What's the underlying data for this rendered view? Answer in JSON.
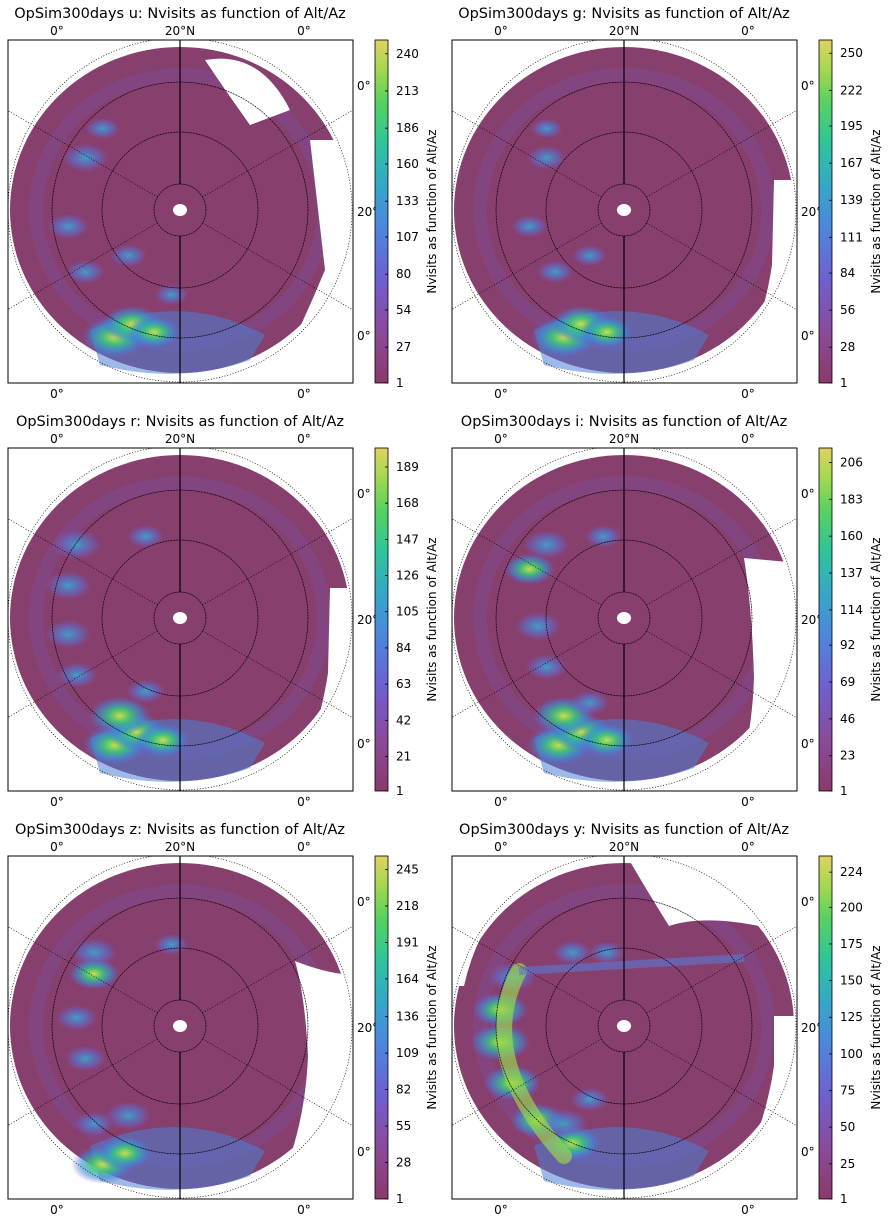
{
  "figure": {
    "panels": [
      {
        "title": "OpSim300days u: Nvisits as function of Alt/Az",
        "colorbar": {
          "label": "Nvisits as function of Alt/Az",
          "ticks": [
            "1",
            "27",
            "54",
            "80",
            "107",
            "133",
            "160",
            "186",
            "213",
            "240"
          ],
          "max": 250
        },
        "labels": {
          "top_left": "0°",
          "top_center": "20°N",
          "top_right": "0°",
          "right_upper": "0°",
          "right_middle": "20°",
          "right_lower": "0°",
          "bottom_left": "0°",
          "bottom_right": "0°"
        },
        "gaps": "north-east",
        "hot": [
          [
            -0.38,
            -0.78,
            1.0
          ],
          [
            -0.28,
            -0.7,
            0.85
          ],
          [
            -0.15,
            -0.75,
            0.7
          ],
          [
            -0.55,
            0.32,
            0.55
          ],
          [
            -0.65,
            -0.1,
            0.45
          ],
          [
            -0.55,
            -0.38,
            0.4
          ],
          [
            -0.3,
            -0.28,
            0.35
          ],
          [
            -0.45,
            0.5,
            0.3
          ],
          [
            -0.05,
            -0.52,
            0.3
          ]
        ]
      },
      {
        "title": "OpSim300days g: Nvisits as function of Alt/Az",
        "colorbar": {
          "label": "Nvisits as function of Alt/Az",
          "ticks": [
            "1",
            "28",
            "56",
            "84",
            "111",
            "139",
            "167",
            "195",
            "222",
            "250"
          ],
          "max": 260
        },
        "labels": {
          "top_left": "0°",
          "top_center": "20°N",
          "top_right": "0°",
          "right_upper": "0°",
          "right_middle": "20°",
          "right_lower": "0°",
          "bottom_left": "0°",
          "bottom_right": "0°"
        },
        "gaps": "east",
        "hot": [
          [
            -0.35,
            -0.78,
            1.0
          ],
          [
            -0.25,
            -0.7,
            0.85
          ],
          [
            -0.1,
            -0.75,
            0.7
          ],
          [
            -0.45,
            0.32,
            0.4
          ],
          [
            -0.55,
            -0.1,
            0.35
          ],
          [
            -0.4,
            -0.38,
            0.35
          ],
          [
            -0.2,
            -0.28,
            0.3
          ],
          [
            -0.45,
            0.5,
            0.25
          ]
        ]
      },
      {
        "title": "OpSim300days r: Nvisits as function of Alt/Az",
        "colorbar": {
          "label": "Nvisits as function of Alt/Az",
          "ticks": [
            "1",
            "21",
            "42",
            "63",
            "84",
            "105",
            "126",
            "147",
            "168",
            "189"
          ],
          "max": 200
        },
        "labels": {
          "top_left": "0°",
          "top_center": "20°N",
          "top_right": "0°",
          "right_upper": "0°",
          "right_middle": "20°",
          "right_lower": "0°",
          "bottom_left": "0°",
          "bottom_right": "0°"
        },
        "gaps": "east",
        "hot": [
          [
            -0.38,
            -0.78,
            0.95
          ],
          [
            -0.25,
            -0.7,
            0.85
          ],
          [
            -0.1,
            -0.75,
            0.75
          ],
          [
            -0.6,
            0.45,
            0.6
          ],
          [
            -0.65,
            0.2,
            0.55
          ],
          [
            -0.65,
            -0.1,
            0.55
          ],
          [
            -0.6,
            -0.35,
            0.45
          ],
          [
            -0.35,
            -0.6,
            0.9
          ],
          [
            -0.2,
            -0.45,
            0.4
          ],
          [
            -0.2,
            0.5,
            0.35
          ]
        ]
      },
      {
        "title": "OpSim300days i: Nvisits as function of Alt/Az",
        "colorbar": {
          "label": "Nvisits as function of Alt/Az",
          "ticks": [
            "1",
            "23",
            "46",
            "69",
            "92",
            "114",
            "137",
            "160",
            "183",
            "206"
          ],
          "max": 215
        },
        "labels": {
          "top_left": "0°",
          "top_center": "20°N",
          "top_right": "0°",
          "right_upper": "0°",
          "right_middle": "20°",
          "right_lower": "0°",
          "bottom_left": "0°",
          "bottom_right": "0°"
        },
        "gaps": "east-wedge",
        "hot": [
          [
            -0.38,
            -0.78,
            0.95
          ],
          [
            -0.25,
            -0.7,
            0.85
          ],
          [
            -0.1,
            -0.75,
            0.75
          ],
          [
            -0.45,
            0.45,
            0.55
          ],
          [
            -0.55,
            0.3,
            0.65
          ],
          [
            -0.5,
            -0.05,
            0.55
          ],
          [
            -0.45,
            -0.3,
            0.45
          ],
          [
            -0.35,
            -0.6,
            0.9
          ],
          [
            -0.2,
            -0.52,
            0.4
          ],
          [
            -0.12,
            0.5,
            0.35
          ]
        ]
      },
      {
        "title": "OpSim300days z: Nvisits as function of Alt/Az",
        "colorbar": {
          "label": "Nvisits as function of Alt/Az",
          "ticks": [
            "1",
            "28",
            "55",
            "82",
            "109",
            "136",
            "164",
            "191",
            "218",
            "245"
          ],
          "max": 255
        },
        "labels": {
          "top_left": "0°",
          "top_center": "20°N",
          "top_right": "0°",
          "right_upper": "0°",
          "right_middle": "20°",
          "right_lower": "0°",
          "bottom_left": "0°",
          "bottom_right": "0°"
        },
        "gaps": "east-large",
        "hot": [
          [
            -0.45,
            -0.85,
            0.9
          ],
          [
            -0.32,
            -0.78,
            0.75
          ],
          [
            -0.5,
            0.45,
            0.55
          ],
          [
            -0.5,
            0.32,
            0.65
          ],
          [
            -0.6,
            0.05,
            0.45
          ],
          [
            -0.55,
            -0.2,
            0.45
          ],
          [
            -0.3,
            -0.55,
            0.55
          ],
          [
            -0.5,
            -0.6,
            0.4
          ],
          [
            -0.05,
            0.5,
            0.3
          ]
        ]
      },
      {
        "title": "OpSim300days y: Nvisits as function of Alt/Az",
        "colorbar": {
          "label": "Nvisits as function of Alt/Az",
          "ticks": [
            "1",
            "25",
            "50",
            "75",
            "100",
            "125",
            "150",
            "175",
            "200",
            "224"
          ],
          "max": 235
        },
        "labels": {
          "top_left": "0°",
          "top_center": "20°N",
          "top_right": "0°",
          "right_upper": "0°",
          "right_middle": "20°",
          "right_lower": "0°",
          "bottom_left": "0°",
          "bottom_right": "0°"
        },
        "gaps": "north-y",
        "hot": [
          [
            -0.65,
            0.3,
            0.6
          ],
          [
            -0.72,
            0.1,
            0.75
          ],
          [
            -0.72,
            -0.1,
            0.85
          ],
          [
            -0.65,
            -0.35,
            0.8
          ],
          [
            -0.5,
            -0.58,
            0.75
          ],
          [
            -0.3,
            -0.72,
            0.8
          ],
          [
            -0.35,
            -0.6,
            0.6
          ],
          [
            -0.1,
            0.45,
            0.35
          ],
          [
            -0.3,
            0.45,
            0.4
          ],
          [
            -0.2,
            -0.45,
            0.4
          ]
        ]
      }
    ]
  }
}
